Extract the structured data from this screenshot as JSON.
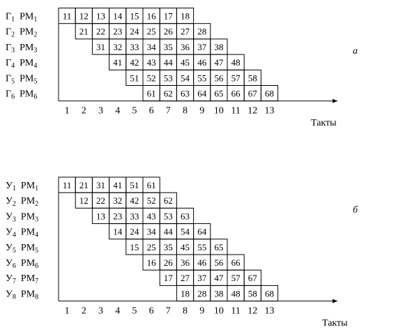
{
  "diagrams": [
    {
      "letter": "а",
      "axis_label": "Такты",
      "ticks": [
        "1",
        "2",
        "3",
        "4",
        "5",
        "6",
        "7",
        "8",
        "9",
        "10",
        "11",
        "12",
        "13"
      ],
      "rows": [
        {
          "unit": "Г",
          "unit_sub": "1",
          "rm": "РМ",
          "rm_sub": "1",
          "offset": 0,
          "cells": [
            "11",
            "12",
            "13",
            "14",
            "15",
            "16",
            "17",
            "18"
          ]
        },
        {
          "unit": "Г",
          "unit_sub": "2",
          "rm": "РМ",
          "rm_sub": "2",
          "offset": 1,
          "cells": [
            "21",
            "22",
            "23",
            "24",
            "25",
            "26",
            "27",
            "28"
          ]
        },
        {
          "unit": "Г",
          "unit_sub": "3",
          "rm": "РМ",
          "rm_sub": "3",
          "offset": 2,
          "cells": [
            "31",
            "32",
            "33",
            "34",
            "35",
            "36",
            "37",
            "38"
          ]
        },
        {
          "unit": "Г",
          "unit_sub": "4",
          "rm": "РМ",
          "rm_sub": "4",
          "offset": 3,
          "cells": [
            "41",
            "42",
            "43",
            "44",
            "45",
            "46",
            "47",
            "48"
          ]
        },
        {
          "unit": "Г",
          "unit_sub": "5",
          "rm": "РМ",
          "rm_sub": "5",
          "offset": 4,
          "cells": [
            "51",
            "52",
            "53",
            "54",
            "55",
            "56",
            "57",
            "58"
          ]
        },
        {
          "unit": "Г",
          "unit_sub": "6",
          "rm": "РМ",
          "rm_sub": "6",
          "offset": 5,
          "cells": [
            "61",
            "62",
            "63",
            "64",
            "65",
            "66",
            "67",
            "68"
          ]
        }
      ]
    },
    {
      "letter": "б",
      "axis_label": "Такты",
      "ticks": [
        "1",
        "2",
        "3",
        "4",
        "5",
        "6",
        "7",
        "8",
        "9",
        "10",
        "11",
        "12",
        "13"
      ],
      "rows": [
        {
          "unit": "У",
          "unit_sub": "1",
          "rm": "РМ",
          "rm_sub": "1",
          "offset": 0,
          "cells": [
            "11",
            "21",
            "31",
            "41",
            "51",
            "61"
          ]
        },
        {
          "unit": "У",
          "unit_sub": "2",
          "rm": "РМ",
          "rm_sub": "2",
          "offset": 1,
          "cells": [
            "12",
            "22",
            "32",
            "42",
            "52",
            "62"
          ]
        },
        {
          "unit": "У",
          "unit_sub": "3",
          "rm": "РМ",
          "rm_sub": "3",
          "offset": 2,
          "cells": [
            "13",
            "23",
            "33",
            "43",
            "53",
            "63"
          ]
        },
        {
          "unit": "У",
          "unit_sub": "4",
          "rm": "РМ",
          "rm_sub": "4",
          "offset": 3,
          "cells": [
            "14",
            "24",
            "34",
            "44",
            "54",
            "64"
          ]
        },
        {
          "unit": "У",
          "unit_sub": "5",
          "rm": "РМ",
          "rm_sub": "5",
          "offset": 4,
          "cells": [
            "15",
            "25",
            "35",
            "45",
            "55",
            "65"
          ]
        },
        {
          "unit": "У",
          "unit_sub": "6",
          "rm": "РМ",
          "rm_sub": "6",
          "offset": 5,
          "cells": [
            "16",
            "26",
            "36",
            "46",
            "56",
            "66"
          ]
        },
        {
          "unit": "У",
          "unit_sub": "7",
          "rm": "РМ",
          "rm_sub": "7",
          "offset": 6,
          "cells": [
            "17",
            "27",
            "37",
            "47",
            "57",
            "67"
          ]
        },
        {
          "unit": "У",
          "unit_sub": "8",
          "rm": "РМ",
          "rm_sub": "8",
          "offset": 7,
          "cells": [
            "18",
            "28",
            "38",
            "48",
            "58",
            "68"
          ]
        }
      ]
    }
  ]
}
